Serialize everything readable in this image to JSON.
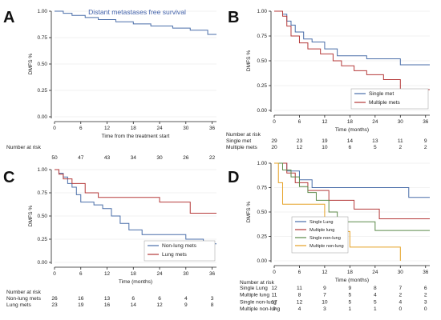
{
  "chart_data": [
    {
      "panel": "A",
      "type": "line",
      "title": "Distant metastases free survival",
      "xlabel": "Time from the treatment start",
      "ylabel": "DMFS %",
      "xlim": [
        0,
        37
      ],
      "ylim": [
        0,
        1
      ],
      "xticks": [
        "0",
        "6",
        "12",
        "18",
        "24",
        "30",
        "36"
      ],
      "yticks": [
        "0.00",
        "0.25",
        "0.50",
        "0.75",
        "1.00"
      ],
      "grid": true,
      "series": [
        {
          "name": "",
          "color": "#4a6ea9",
          "x": [
            0,
            2,
            4,
            7,
            10,
            14,
            18,
            22,
            27,
            31,
            35,
            37
          ],
          "y": [
            1.0,
            0.98,
            0.96,
            0.94,
            0.92,
            0.9,
            0.88,
            0.86,
            0.84,
            0.82,
            0.78,
            0.78
          ]
        }
      ],
      "risk_table": {
        "header": "Number at risk",
        "rows": [
          {
            "label": "",
            "values": [
              "50",
              "47",
              "43",
              "34",
              "30",
              "26",
              "22"
            ]
          }
        ]
      }
    },
    {
      "panel": "B",
      "type": "line",
      "title": "",
      "xlabel": "Time (months)",
      "ylabel": "DMFS %",
      "xlim": [
        0,
        37
      ],
      "ylim": [
        0,
        1
      ],
      "xticks": [
        "0",
        "6",
        "12",
        "18",
        "24",
        "30",
        "36"
      ],
      "yticks": [
        "0.00",
        "0.25",
        "0.50",
        "0.75",
        "1.00"
      ],
      "grid": true,
      "legend_position": "bottom-right",
      "series": [
        {
          "name": "Single met",
          "color": "#4a6ea9",
          "x": [
            0,
            2,
            3,
            4,
            5,
            7,
            9,
            12,
            15,
            18,
            20,
            22,
            25,
            30,
            37
          ],
          "y": [
            1.0,
            0.97,
            0.9,
            0.86,
            0.79,
            0.72,
            0.69,
            0.62,
            0.55,
            0.55,
            0.55,
            0.52,
            0.52,
            0.46,
            0.46
          ]
        },
        {
          "name": "Multiple mets",
          "color": "#b53a3a",
          "x": [
            0,
            2,
            3,
            4,
            6,
            8,
            11,
            14,
            16,
            19,
            22,
            26,
            30,
            37
          ],
          "y": [
            1.0,
            0.95,
            0.85,
            0.75,
            0.68,
            0.62,
            0.57,
            0.5,
            0.45,
            0.4,
            0.36,
            0.31,
            0.21,
            0.21
          ]
        }
      ],
      "risk_table": {
        "header": "Number at risk",
        "rows": [
          {
            "label": "Single met",
            "values": [
              "29",
              "23",
              "19",
              "14",
              "13",
              "11",
              "9"
            ]
          },
          {
            "label": "Multiple mets",
            "values": [
              "20",
              "12",
              "10",
              "6",
              "5",
              "2",
              "2"
            ]
          }
        ]
      }
    },
    {
      "panel": "C",
      "type": "line",
      "title": "",
      "xlabel": "Time (months)",
      "ylabel": "DMFS %",
      "xlim": [
        0,
        37
      ],
      "ylim": [
        0,
        1
      ],
      "xticks": [
        "0",
        "6",
        "12",
        "18",
        "24",
        "30",
        "36"
      ],
      "yticks": [
        "0.00",
        "0.25",
        "0.50",
        "0.75",
        "1.00"
      ],
      "grid": true,
      "legend_position": "bottom-right",
      "series": [
        {
          "name": "Non-lung mets",
          "color": "#4a6ea9",
          "x": [
            0,
            1,
            2,
            3,
            4,
            5,
            6,
            9,
            11,
            13,
            15,
            17,
            20,
            24,
            30,
            34,
            37
          ],
          "y": [
            1.0,
            0.96,
            0.92,
            0.85,
            0.81,
            0.73,
            0.65,
            0.62,
            0.58,
            0.5,
            0.42,
            0.35,
            0.3,
            0.3,
            0.25,
            0.2,
            0.2
          ]
        },
        {
          "name": "Lung mets",
          "color": "#b53a3a",
          "x": [
            0,
            1,
            2,
            4,
            7,
            10,
            13,
            18,
            24,
            29,
            31,
            37
          ],
          "y": [
            1.0,
            0.95,
            0.9,
            0.85,
            0.75,
            0.7,
            0.7,
            0.7,
            0.65,
            0.65,
            0.53,
            0.53
          ]
        }
      ],
      "risk_table": {
        "header": "Number at risk",
        "rows": [
          {
            "label": "Non-lung mets",
            "values": [
              "26",
              "16",
              "13",
              "6",
              "6",
              "4",
              "3"
            ]
          },
          {
            "label": "Lung mets",
            "values": [
              "23",
              "19",
              "16",
              "14",
              "12",
              "9",
              "8"
            ]
          }
        ]
      }
    },
    {
      "panel": "D",
      "type": "line",
      "title": "",
      "xlabel": "Time (months)",
      "ylabel": "DMFS %",
      "xlim": [
        0,
        37
      ],
      "ylim": [
        0,
        1
      ],
      "xticks": [
        "0",
        "6",
        "12",
        "18",
        "24",
        "30",
        "36"
      ],
      "yticks": [
        "0.00",
        "0.25",
        "0.50",
        "0.75",
        "1.00"
      ],
      "grid": true,
      "legend_position": "bottom-left",
      "series": [
        {
          "name": "Single Lung",
          "color": "#4a6ea9",
          "x": [
            0,
            3,
            6,
            9,
            14,
            28,
            32,
            37
          ],
          "y": [
            1.0,
            0.92,
            0.83,
            0.75,
            0.75,
            0.75,
            0.65,
            0.65
          ]
        },
        {
          "name": "Multiple lung",
          "color": "#b53a3a",
          "x": [
            0,
            3,
            5,
            8,
            13,
            19,
            25,
            37
          ],
          "y": [
            1.0,
            0.9,
            0.8,
            0.72,
            0.62,
            0.53,
            0.43,
            0.43
          ]
        },
        {
          "name": "Single non-lung",
          "color": "#5c8a4a",
          "x": [
            0,
            2,
            4,
            6,
            8,
            10,
            13,
            15,
            24,
            37
          ],
          "y": [
            1.0,
            0.93,
            0.86,
            0.76,
            0.7,
            0.62,
            0.5,
            0.4,
            0.31,
            0.31
          ]
        },
        {
          "name": "Multiple non-lung",
          "color": "#e5a124",
          "x": [
            0,
            1,
            2,
            5,
            12,
            15,
            18,
            30
          ],
          "y": [
            1.0,
            0.8,
            0.58,
            0.58,
            0.4,
            0.3,
            0.14,
            0.0
          ]
        }
      ],
      "risk_table": {
        "header": "Number at risk",
        "rows": [
          {
            "label": "Single Lung",
            "values": [
              "12",
              "11",
              "9",
              "9",
              "8",
              "7",
              "6"
            ]
          },
          {
            "label": "Multiple lung",
            "values": [
              "11",
              "8",
              "7",
              "5",
              "4",
              "2",
              "2"
            ]
          },
          {
            "label": "Single non-lung",
            "values": [
              "17",
              "12",
              "10",
              "5",
              "5",
              "4",
              "3"
            ]
          },
          {
            "label": "Multiple non-lung",
            "values": [
              "9",
              "4",
              "3",
              "1",
              "1",
              "0",
              "0"
            ]
          }
        ]
      }
    }
  ]
}
